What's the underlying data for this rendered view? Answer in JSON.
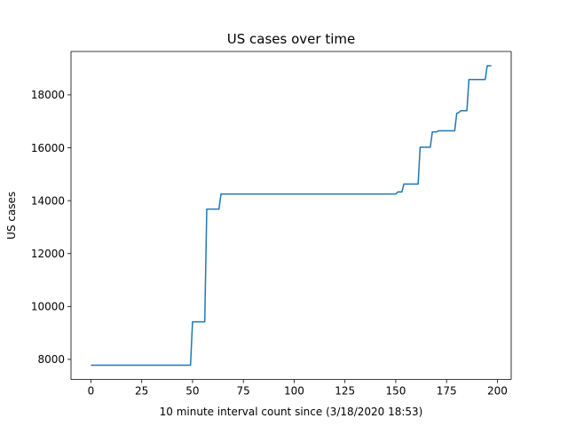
{
  "chart_data": {
    "type": "line",
    "title": "US cases over time",
    "xlabel": "10 minute interval count since (3/18/2020 18:53)",
    "ylabel": "US cases",
    "xlim": [
      -9.8,
      206.8
    ],
    "ylim": [
      7240,
      19640
    ],
    "xticks": [
      0,
      25,
      50,
      75,
      100,
      125,
      150,
      175,
      200
    ],
    "yticks": [
      8000,
      10000,
      12000,
      14000,
      16000,
      18000
    ],
    "grid": false,
    "line_color": "#1f77b4",
    "series": [
      {
        "points": [
          [
            0,
            7780
          ],
          [
            49,
            7780
          ],
          [
            50,
            9420
          ],
          [
            56,
            9420
          ],
          [
            57,
            13680
          ],
          [
            63,
            13680
          ],
          [
            64,
            14250
          ],
          [
            150,
            14250
          ],
          [
            151,
            14330
          ],
          [
            153,
            14330
          ],
          [
            154,
            14630
          ],
          [
            161,
            14630
          ],
          [
            162,
            16020
          ],
          [
            167,
            16020
          ],
          [
            168,
            16600
          ],
          [
            170,
            16600
          ],
          [
            171,
            16640
          ],
          [
            179,
            16640
          ],
          [
            180,
            17300
          ],
          [
            181,
            17330
          ],
          [
            182,
            17400
          ],
          [
            185,
            17400
          ],
          [
            186,
            18580
          ],
          [
            194,
            18580
          ],
          [
            195,
            19100
          ],
          [
            197,
            19100
          ]
        ]
      }
    ]
  }
}
